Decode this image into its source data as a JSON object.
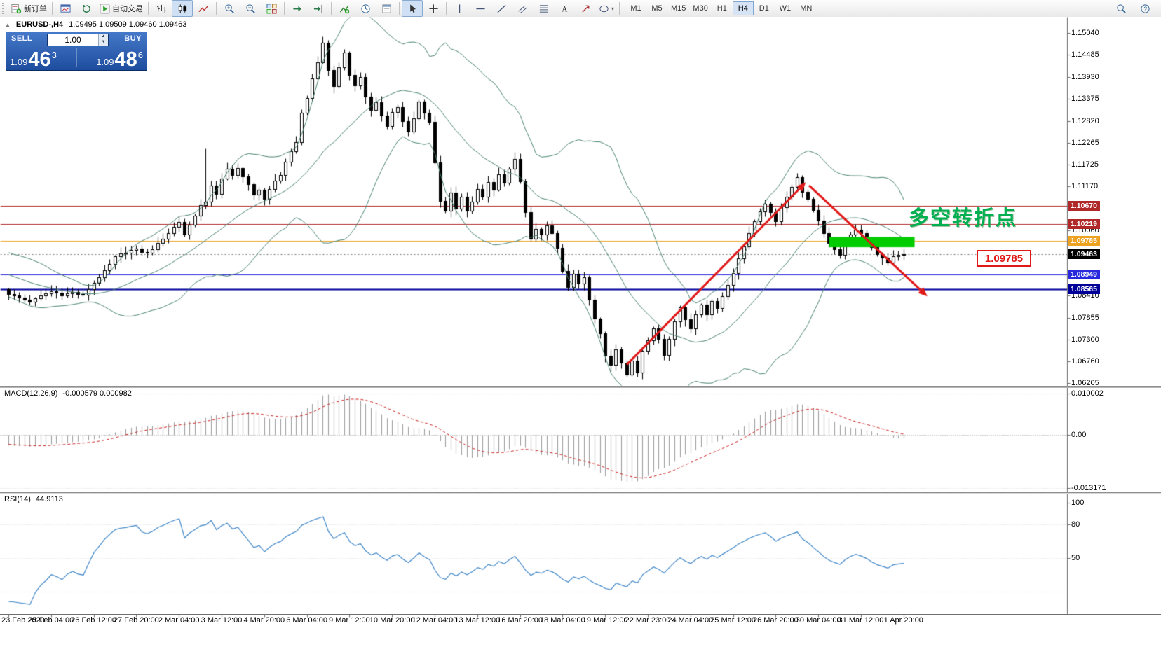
{
  "toolbar": {
    "items": [
      {
        "name": "new-order-button",
        "icon": "new-order",
        "label": "新订单"
      },
      {
        "sep": true
      },
      {
        "name": "open-chart-button",
        "icon": "chart-window"
      },
      {
        "name": "refresh-button",
        "icon": "refresh"
      },
      {
        "name": "autotrade-button",
        "icon": "autotrade",
        "label": "自动交易"
      },
      {
        "sep": true
      },
      {
        "name": "bar-chart-button",
        "icon": "bar-chart"
      },
      {
        "name": "candle-chart-button",
        "icon": "candle-chart",
        "active": true
      },
      {
        "name": "line-chart-button",
        "icon": "line-chart"
      },
      {
        "sep": true
      },
      {
        "name": "zoom-in-button",
        "icon": "zoom-in"
      },
      {
        "name": "zoom-out-button",
        "icon": "zoom-out"
      },
      {
        "name": "tile-windows-button",
        "icon": "tile-windows"
      },
      {
        "sep": true
      },
      {
        "name": "auto-scroll-button",
        "icon": "auto-scroll"
      },
      {
        "name": "chart-shift-button",
        "icon": "chart-shift"
      },
      {
        "sep": true
      },
      {
        "name": "indicators-button",
        "icon": "indicators"
      },
      {
        "name": "periods-button",
        "icon": "periods"
      },
      {
        "name": "templates-button",
        "icon": "templates"
      },
      {
        "sep": true
      },
      {
        "name": "cursor-button",
        "icon": "cursor",
        "active": true
      },
      {
        "name": "crosshair-button",
        "icon": "crosshair"
      },
      {
        "sep": true
      },
      {
        "name": "vertical-line-button",
        "icon": "vline"
      },
      {
        "name": "horizontal-line-button",
        "icon": "hline"
      },
      {
        "name": "trendline-button",
        "icon": "trendline"
      },
      {
        "name": "channel-button",
        "icon": "channel"
      },
      {
        "name": "fibonacci-button",
        "icon": "fibonacci"
      },
      {
        "name": "text-button",
        "icon": "text"
      },
      {
        "name": "arrow-tool-button",
        "icon": "arrows"
      },
      {
        "name": "shapes-button",
        "icon": "shapes",
        "caret": true
      },
      {
        "sep": true
      }
    ],
    "right_items": [
      {
        "name": "search-button",
        "icon": "search"
      },
      {
        "name": "help-button",
        "icon": "help"
      }
    ],
    "timeframes": [
      "M1",
      "M5",
      "M15",
      "M30",
      "H1",
      "H4",
      "D1",
      "W1",
      "MN"
    ],
    "active_timeframe": "H4"
  },
  "symbol_header": {
    "marker": "▲",
    "symbol": "EURUSD-,H4",
    "ohlc": "1.09495 1.09509 1.09460 1.09463"
  },
  "trade_panel": {
    "sell_label": "SELL",
    "buy_label": "BUY",
    "volume": "1.00",
    "sell_small": "1.09",
    "sell_big": "46",
    "sell_sup": "3",
    "buy_small": "1.09",
    "buy_big": "48",
    "buy_sup": "6"
  },
  "price_axis": {
    "ticks": [
      {
        "label": "1.15040",
        "value": 1.1504
      },
      {
        "label": "1.14485",
        "value": 1.14485
      },
      {
        "label": "1.13930",
        "value": 1.1393
      },
      {
        "label": "1.13375",
        "value": 1.13375
      },
      {
        "label": "1.12820",
        "value": 1.1282
      },
      {
        "label": "1.12265",
        "value": 1.12265
      },
      {
        "label": "1.11725",
        "value": 1.11725
      },
      {
        "label": "1.11170",
        "value": 1.1117
      },
      {
        "label": "1.10060",
        "value": 1.1006
      },
      {
        "label": "1.08410",
        "value": 1.0841
      },
      {
        "label": "1.07855",
        "value": 1.07855
      },
      {
        "label": "1.07300",
        "value": 1.073
      },
      {
        "label": "1.06760",
        "value": 1.0676
      },
      {
        "label": "1.06205",
        "value": 1.06205
      }
    ],
    "boxed_labels": [
      {
        "label": "1.10670",
        "value": 1.1067,
        "bg": "#b02828"
      },
      {
        "label": "1.10219",
        "value": 1.10219,
        "bg": "#b02828"
      },
      {
        "label": "1.09785",
        "value": 1.09785,
        "bg": "#eda221"
      },
      {
        "label": "1.09463",
        "value": 1.09463,
        "bg": "#000000"
      },
      {
        "label": "1.08949",
        "value": 1.08949,
        "bg": "#2828dd"
      },
      {
        "label": "1.08565",
        "value": 1.08565,
        "bg": "#000099"
      }
    ]
  },
  "main_chart": {
    "hlines": [
      {
        "price": 1.1067,
        "color": "#b02828",
        "width": 1
      },
      {
        "price": 1.10219,
        "color": "#b02828",
        "width": 1
      },
      {
        "price": 1.09785,
        "color": "#eda221",
        "width": 1
      },
      {
        "price": 1.08949,
        "color": "#2828dd",
        "width": 1
      },
      {
        "price": 1.08565,
        "color": "#000099",
        "width": 2
      }
    ],
    "current_price": {
      "value": 1.09463
    },
    "green_box": {
      "bar_start": 154,
      "bar_end": 170,
      "price_top": 1.099,
      "price_bottom": 1.0964,
      "color": "#00cc00"
    },
    "arrows": [
      {
        "from_bar": 116,
        "from_price": 1.0668,
        "to_bar": 149.6,
        "to_price": 1.1128,
        "color": "#e01818",
        "width": 3
      },
      {
        "from_bar": 150.2,
        "from_price": 1.112,
        "to_bar": 172.4,
        "to_price": 1.084,
        "color": "#e01818",
        "width": 3
      }
    ],
    "annotation": {
      "text": "多空转折点",
      "color": "#00b050"
    },
    "price_tag": {
      "text": "1.09785",
      "color": "#e01818"
    }
  },
  "indicators": {
    "macd": {
      "label": "MACD(12,26,9)",
      "values": "-0.000579 0.000982",
      "axis_labels": [
        "0.010002",
        "0.00",
        "-0.013171"
      ],
      "histogram_color": "#9a9a9a",
      "signal_color": "#cc2222"
    },
    "rsi": {
      "label": "RSI(14)",
      "value": "44.9113",
      "axis_labels": [
        "100",
        "80",
        "50"
      ],
      "line_color": "#3f86c8"
    }
  },
  "time_axis": {
    "labels": [
      "23 Feb 2020",
      "25 Feb 04:00",
      "26 Feb 12:00",
      "27 Feb 20:00",
      "2 Mar 04:00",
      "3 Mar 12:00",
      "4 Mar 20:00",
      "6 Mar 04:00",
      "9 Mar 12:00",
      "10 Mar 20:00",
      "12 Mar 04:00",
      "13 Mar 12:00",
      "16 Mar 20:00",
      "18 Mar 04:00",
      "19 Mar 12:00",
      "22 Mar 23:00",
      "24 Mar 04:00",
      "25 Mar 12:00",
      "26 Mar 20:00",
      "30 Mar 04:00",
      "31 Mar 12:00",
      "1 Apr 20:00"
    ]
  },
  "chart_data": {
    "type": "candlestick",
    "symbol": "EURUSD",
    "timeframe": "H4",
    "bars": 169,
    "last_close": 1.09463,
    "prehistory_bars": 40,
    "prehistory_waypoints": [
      [
        0,
        1.099
      ],
      [
        12,
        1.0962
      ],
      [
        24,
        1.0925
      ],
      [
        32,
        1.089
      ],
      [
        39,
        1.0852
      ]
    ],
    "close_waypoints": [
      [
        0,
        1.0846
      ],
      [
        2,
        1.0836
      ],
      [
        4,
        1.0826
      ],
      [
        6,
        1.084
      ],
      [
        8,
        1.0852
      ],
      [
        10,
        1.0844
      ],
      [
        12,
        1.085
      ],
      [
        14,
        1.0842
      ],
      [
        16,
        1.0874
      ],
      [
        18,
        1.0902
      ],
      [
        20,
        1.0938
      ],
      [
        22,
        1.0952
      ],
      [
        24,
        1.0958
      ],
      [
        26,
        1.0948
      ],
      [
        28,
        1.0972
      ],
      [
        30,
        1.1
      ],
      [
        32,
        1.1028
      ],
      [
        33,
        1.0996
      ],
      [
        34,
        1.102
      ],
      [
        36,
        1.1068
      ],
      [
        37,
        1.1075
      ],
      [
        38,
        1.112
      ],
      [
        39,
        1.1098
      ],
      [
        40,
        1.1135
      ],
      [
        41,
        1.116
      ],
      [
        42,
        1.1145
      ],
      [
        43,
        1.1165
      ],
      [
        45,
        1.112
      ],
      [
        46,
        1.1095
      ],
      [
        47,
        1.111
      ],
      [
        48,
        1.1085
      ],
      [
        50,
        1.113
      ],
      [
        51,
        1.1145
      ],
      [
        52,
        1.118
      ],
      [
        54,
        1.123
      ],
      [
        55,
        1.13
      ],
      [
        56,
        1.134
      ],
      [
        57,
        1.139
      ],
      [
        58,
        1.143
      ],
      [
        59,
        1.1478
      ],
      [
        60,
        1.141
      ],
      [
        61,
        1.137
      ],
      [
        62,
        1.1415
      ],
      [
        63,
        1.1452
      ],
      [
        64,
        1.14
      ],
      [
        65,
        1.137
      ],
      [
        66,
        1.1395
      ],
      [
        67,
        1.134
      ],
      [
        68,
        1.131
      ],
      [
        69,
        1.133
      ],
      [
        70,
        1.1295
      ],
      [
        71,
        1.127
      ],
      [
        72,
        1.1305
      ],
      [
        73,
        1.132
      ],
      [
        74,
        1.128
      ],
      [
        75,
        1.1255
      ],
      [
        76,
        1.129
      ],
      [
        77,
        1.133
      ],
      [
        78,
        1.13
      ],
      [
        79,
        1.128
      ],
      [
        80,
        1.118
      ],
      [
        81,
        1.108
      ],
      [
        82,
        1.1055
      ],
      [
        83,
        1.11
      ],
      [
        84,
        1.106
      ],
      [
        85,
        1.109
      ],
      [
        86,
        1.1055
      ],
      [
        87,
        1.108
      ],
      [
        88,
        1.111
      ],
      [
        89,
        1.109
      ],
      [
        90,
        1.113
      ],
      [
        91,
        1.111
      ],
      [
        92,
        1.1145
      ],
      [
        93,
        1.1125
      ],
      [
        94,
        1.116
      ],
      [
        95,
        1.1185
      ],
      [
        96,
        1.113
      ],
      [
        97,
        1.105
      ],
      [
        98,
        1.0985
      ],
      [
        99,
        1.101
      ],
      [
        100,
        1.0995
      ],
      [
        101,
        1.102
      ],
      [
        102,
        1.1
      ],
      [
        103,
        1.096
      ],
      [
        104,
        1.0905
      ],
      [
        105,
        1.086
      ],
      [
        106,
        1.0895
      ],
      [
        107,
        1.087
      ],
      [
        108,
        1.089
      ],
      [
        109,
        1.083
      ],
      [
        110,
        1.078
      ],
      [
        111,
        1.0745
      ],
      [
        112,
        1.069
      ],
      [
        113,
        1.0665
      ],
      [
        114,
        1.0705
      ],
      [
        115,
        1.067
      ],
      [
        116,
        1.064
      ],
      [
        117,
        1.068
      ],
      [
        118,
        1.0645
      ],
      [
        119,
        1.07
      ],
      [
        120,
        1.073
      ],
      [
        121,
        1.076
      ],
      [
        122,
        1.073
      ],
      [
        123,
        1.069
      ],
      [
        124,
        1.073
      ],
      [
        125,
        1.0775
      ],
      [
        126,
        1.081
      ],
      [
        127,
        1.078
      ],
      [
        128,
        1.076
      ],
      [
        129,
        1.0795
      ],
      [
        130,
        1.082
      ],
      [
        131,
        1.0795
      ],
      [
        132,
        1.0825
      ],
      [
        133,
        1.081
      ],
      [
        134,
        1.084
      ],
      [
        135,
        1.087
      ],
      [
        136,
        1.09
      ],
      [
        137,
        1.0935
      ],
      [
        138,
        1.0965
      ],
      [
        139,
        1.1
      ],
      [
        140,
        1.103
      ],
      [
        141,
        1.1055
      ],
      [
        142,
        1.1075
      ],
      [
        143,
        1.105
      ],
      [
        144,
        1.103
      ],
      [
        145,
        1.1065
      ],
      [
        146,
        1.109
      ],
      [
        147,
        1.1115
      ],
      [
        148,
        1.114
      ],
      [
        149,
        1.1105
      ],
      [
        150,
        1.1085
      ],
      [
        151,
        1.1055
      ],
      [
        152,
        1.103
      ],
      [
        153,
        1.1
      ],
      [
        154,
        1.0975
      ],
      [
        155,
        1.0955
      ],
      [
        156,
        1.0945
      ],
      [
        157,
        1.0975
      ],
      [
        158,
        1.0995
      ],
      [
        159,
        1.101
      ],
      [
        160,
        1.0998
      ],
      [
        161,
        1.0985
      ],
      [
        162,
        1.0965
      ],
      [
        163,
        1.0945
      ],
      [
        164,
        1.0938
      ],
      [
        165,
        1.0925
      ],
      [
        166,
        1.0938
      ],
      [
        167,
        1.0942
      ],
      [
        168,
        1.09463
      ]
    ],
    "spikes": [
      {
        "bar": 37,
        "high": 1.1212
      },
      {
        "bar": 59,
        "high": 1.1495
      },
      {
        "bar": 118,
        "low": 1.0636
      },
      {
        "bar": 148,
        "high": 1.1147
      }
    ],
    "indicator_params": {
      "bollinger": {
        "period": 20,
        "deviation": 2
      },
      "macd": {
        "fast": 12,
        "slow": 26,
        "signal": 9
      },
      "rsi": {
        "period": 14
      }
    },
    "y_axis": {
      "top_label_price": 1.1504,
      "bottom_label_price": 1.06205
    },
    "colors": {
      "bull": "#ffffff",
      "bear": "#000000",
      "wick": "#000000",
      "bollinger": "#4a8374",
      "background": "#ffffff"
    }
  }
}
